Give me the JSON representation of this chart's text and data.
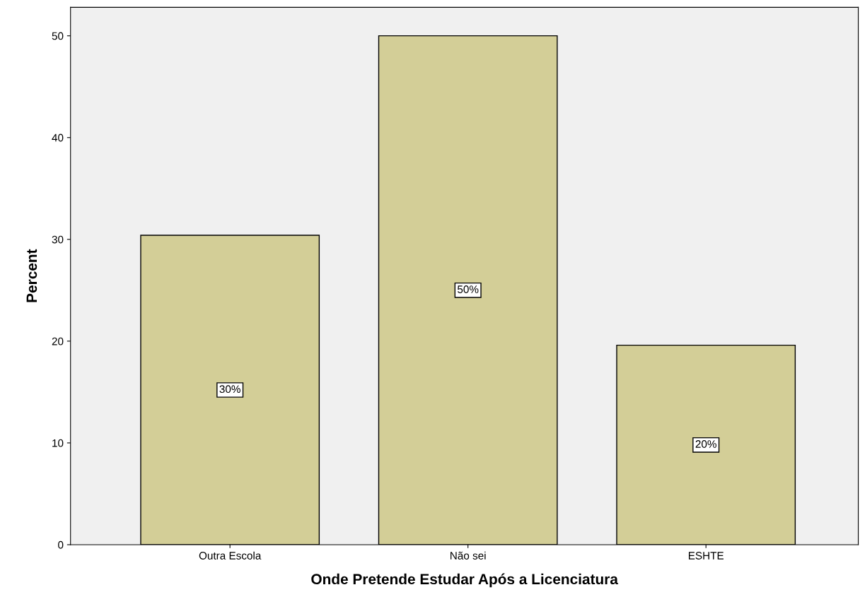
{
  "chart_data": {
    "type": "bar",
    "xlabel": "Onde Pretende Estudar Após a Licenciatura",
    "ylabel": "Percent",
    "categories": [
      "Outra Escola",
      "Não sei",
      "ESHTE"
    ],
    "values": [
      30.4,
      50,
      19.6
    ],
    "value_labels": [
      "30%",
      "50%",
      "20%"
    ],
    "color": "#d3ce97",
    "ylim": [
      0,
      52.8
    ],
    "yticks": [
      0,
      10,
      20,
      30,
      40,
      50
    ],
    "grid": false
  }
}
